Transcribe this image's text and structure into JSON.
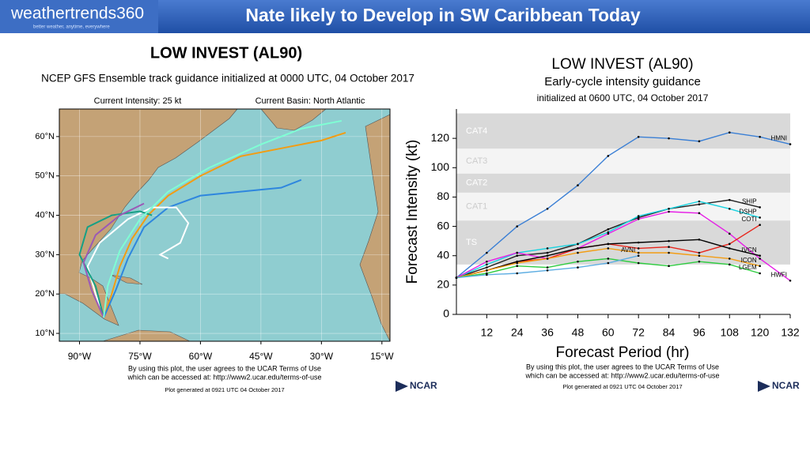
{
  "header": {
    "title": "Nate likely to Develop in SW Caribbean Today",
    "logo": "weathertrends360",
    "tagline": "better weather, anytime, everywhere"
  },
  "chart_data": [
    {
      "type": "map",
      "title": "LOW INVEST (AL90)",
      "subtitle": "NCEP GFS Ensemble track guidance initialized at 0000 UTC, 04 October 2017",
      "annotations": [
        "Current Intensity: 25 kt",
        "Current Basin: North Atlantic"
      ],
      "notes": [
        "By using this plot, the user agrees to the UCAR Terms of Use",
        "which can be accessed at: http://www2.ucar.edu/terms-of-use",
        "Plot generated at 0921 UTC   04 October 2017"
      ],
      "logo": "NCAR",
      "xlim": [
        -95,
        -13
      ],
      "ylim": [
        8,
        67
      ],
      "xticks": [
        {
          "value": -90,
          "label": "90°W"
        },
        {
          "value": -75,
          "label": "75°W"
        },
        {
          "value": -60,
          "label": "60°W"
        },
        {
          "value": -45,
          "label": "45°W"
        },
        {
          "value": -30,
          "label": "30°W"
        },
        {
          "value": -15,
          "label": "15°W"
        }
      ],
      "yticks": [
        {
          "value": 10,
          "label": "10°N"
        },
        {
          "value": 20,
          "label": "20°N"
        },
        {
          "value": 30,
          "label": "30°N"
        },
        {
          "value": 40,
          "label": "40°N"
        },
        {
          "value": 50,
          "label": "50°N"
        },
        {
          "value": 60,
          "label": "60°N"
        }
      ],
      "grid": true,
      "series": [
        {
          "color": "#f39c12",
          "x": [
            -84,
            -82,
            -80,
            -77,
            -73,
            -68,
            -60,
            -50,
            -40,
            -30,
            -24
          ],
          "y": [
            14,
            20,
            27,
            34,
            40,
            45,
            50,
            55,
            57,
            59,
            61
          ]
        },
        {
          "color": "#2e86de",
          "x": [
            -84,
            -81,
            -78,
            -74,
            -68,
            -60,
            -50,
            -40,
            -35
          ],
          "y": [
            14,
            21,
            29,
            37,
            42,
            45,
            46,
            47,
            49
          ]
        },
        {
          "color": "#ffffff",
          "x": [
            -84,
            -86,
            -88,
            -85,
            -78,
            -72,
            -66,
            -63,
            -65,
            -70,
            -68
          ],
          "y": [
            14,
            20,
            27,
            33,
            39,
            42,
            42,
            38,
            33,
            30,
            29
          ]
        },
        {
          "color": "#16a085",
          "x": [
            -84,
            -86,
            -90,
            -88,
            -82,
            -75,
            -72
          ],
          "y": [
            14,
            22,
            30,
            37,
            40,
            41,
            40
          ]
        },
        {
          "color": "#9b59b6",
          "x": [
            -84,
            -87,
            -89,
            -86,
            -80,
            -74
          ],
          "y": [
            14,
            21,
            28,
            35,
            40,
            43
          ]
        },
        {
          "color": "#7fffd4",
          "x": [
            -84,
            -83,
            -80,
            -75,
            -68,
            -58,
            -45,
            -35,
            -25
          ],
          "y": [
            14,
            22,
            31,
            39,
            46,
            52,
            58,
            62,
            64
          ]
        }
      ]
    },
    {
      "type": "line",
      "title": "LOW INVEST (AL90)",
      "subtitle": [
        "Early-cycle intensity guidance",
        "initialized at 0600 UTC, 04 October 2017"
      ],
      "x_label": "Forecast Period (hr)",
      "y_label": "Forecast Intensity (kt)",
      "notes": [
        "By using this plot, the user agrees to the UCAR Terms of Use",
        "which can be accessed at: http://www2.ucar.edu/terms-of-use",
        "Plot generated at 0921 UTC   04 October 2017"
      ],
      "logo": "NCAR",
      "xlim": [
        0,
        132
      ],
      "ylim": [
        0,
        140
      ],
      "xticks": [
        12,
        24,
        36,
        48,
        60,
        72,
        84,
        96,
        108,
        120,
        132
      ],
      "yticks": [
        0,
        20,
        40,
        60,
        80,
        100,
        120
      ],
      "bands": [
        {
          "label": "TS",
          "from": 34,
          "to": 64,
          "color": "#d9d9d9"
        },
        {
          "label": "CAT1",
          "from": 64,
          "to": 83,
          "color": "#f4f4f4"
        },
        {
          "label": "CAT2",
          "from": 83,
          "to": 96,
          "color": "#d9d9d9"
        },
        {
          "label": "CAT3",
          "from": 96,
          "to": 113,
          "color": "#f4f4f4"
        },
        {
          "label": "CAT4",
          "from": 113,
          "to": 137,
          "color": "#d9d9d9"
        }
      ],
      "x": [
        0,
        12,
        24,
        36,
        48,
        60,
        72,
        84,
        96,
        108,
        120,
        132
      ],
      "series": [
        {
          "name": "HMNI",
          "color": "#3a7fd5",
          "values": [
            25,
            42,
            60,
            72,
            88,
            108,
            121,
            120,
            118,
            124,
            121,
            116
          ]
        },
        {
          "name": "SHIP",
          "color": "#222222",
          "values": [
            25,
            32,
            40,
            42,
            48,
            58,
            66,
            72,
            75,
            78,
            73,
            null
          ]
        },
        {
          "name": "DSHP",
          "color": "#17d3e0",
          "values": [
            25,
            34,
            42,
            45,
            48,
            56,
            67,
            72,
            77,
            72,
            66,
            null
          ]
        },
        {
          "name": "HWFI",
          "color": "#e61ee6",
          "values": [
            25,
            36,
            42,
            38,
            45,
            55,
            65,
            70,
            69,
            55,
            38,
            23
          ]
        },
        {
          "name": "COTI",
          "color": "#e8261c",
          "values": [
            25,
            30,
            36,
            38,
            45,
            48,
            45,
            46,
            42,
            48,
            61,
            null
          ]
        },
        {
          "name": "IVCN",
          "color": "#000000",
          "values": [
            25,
            30,
            36,
            40,
            45,
            48,
            49,
            50,
            51,
            45,
            40,
            null
          ]
        },
        {
          "name": "ICON",
          "color": "#f39c12",
          "values": [
            25,
            30,
            35,
            38,
            42,
            45,
            42,
            42,
            40,
            38,
            33,
            null
          ]
        },
        {
          "name": "LGEM",
          "color": "#2ecc40",
          "values": [
            25,
            28,
            33,
            32,
            36,
            38,
            35,
            33,
            36,
            34,
            28,
            null
          ]
        },
        {
          "name": "AVNI",
          "color": "#5dade2",
          "values": [
            25,
            27,
            28,
            30,
            32,
            35,
            40,
            null,
            null,
            null,
            null,
            null
          ]
        }
      ]
    }
  ]
}
